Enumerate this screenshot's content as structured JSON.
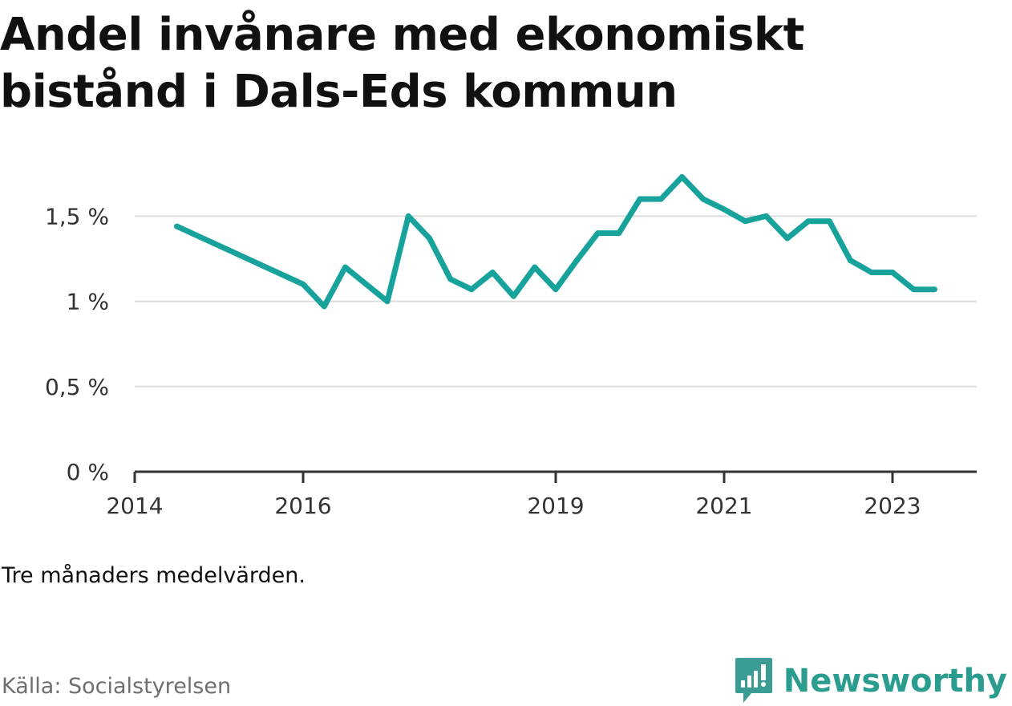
{
  "title": "Andel invånare med ekonomiskt bistånd i Dals-Eds kommun",
  "note": "Tre månaders medelvärden.",
  "source": "Källa: Socialstyrelsen",
  "brand": {
    "name": "Newsworthy",
    "icon": "newsworthy-logo-icon",
    "color": "#3a9c93"
  },
  "colors": {
    "line": "#17a39c",
    "grid": "#dddddd",
    "axis": "#333333"
  },
  "chart_data": {
    "type": "line",
    "title": "Andel invånare med ekonomiskt bistånd i Dals-Eds kommun",
    "xlabel": "",
    "ylabel": "",
    "grid": true,
    "legend": "none",
    "xlim": [
      "2014-01",
      "2024-01"
    ],
    "ylim": [
      0,
      1.85
    ],
    "y_ticks": [
      {
        "value": 0,
        "label": "0 %"
      },
      {
        "value": 0.5,
        "label": "0,5 %"
      },
      {
        "value": 1,
        "label": "1 %"
      },
      {
        "value": 1.5,
        "label": "1,5 %"
      }
    ],
    "x_ticks": [
      {
        "value": "2014-01",
        "label": "2014"
      },
      {
        "value": "2016-01",
        "label": "2016"
      },
      {
        "value": "2019-01",
        "label": "2019"
      },
      {
        "value": "2021-01",
        "label": "2021"
      },
      {
        "value": "2023-01",
        "label": "2023"
      }
    ],
    "series": [
      {
        "color": "#17a39c",
        "points": [
          {
            "x": "2014-07",
            "y": 1.44
          },
          {
            "x": "2016-01",
            "y": 1.1
          },
          {
            "x": "2016-04",
            "y": 0.97
          },
          {
            "x": "2016-07",
            "y": 1.2
          },
          {
            "x": "2017-01",
            "y": 1.0
          },
          {
            "x": "2017-04",
            "y": 1.5
          },
          {
            "x": "2017-07",
            "y": 1.37
          },
          {
            "x": "2017-10",
            "y": 1.13
          },
          {
            "x": "2018-01",
            "y": 1.07
          },
          {
            "x": "2018-04",
            "y": 1.17
          },
          {
            "x": "2018-07",
            "y": 1.03
          },
          {
            "x": "2018-10",
            "y": 1.2
          },
          {
            "x": "2019-01",
            "y": 1.07
          },
          {
            "x": "2019-04",
            "y": 1.24
          },
          {
            "x": "2019-07",
            "y": 1.4
          },
          {
            "x": "2019-10",
            "y": 1.4
          },
          {
            "x": "2020-01",
            "y": 1.6
          },
          {
            "x": "2020-04",
            "y": 1.6
          },
          {
            "x": "2020-07",
            "y": 1.73
          },
          {
            "x": "2020-10",
            "y": 1.6
          },
          {
            "x": "2021-01",
            "y": 1.54
          },
          {
            "x": "2021-04",
            "y": 1.47
          },
          {
            "x": "2021-07",
            "y": 1.5
          },
          {
            "x": "2021-10",
            "y": 1.37
          },
          {
            "x": "2022-01",
            "y": 1.47
          },
          {
            "x": "2022-04",
            "y": 1.47
          },
          {
            "x": "2022-07",
            "y": 1.24
          },
          {
            "x": "2022-10",
            "y": 1.17
          },
          {
            "x": "2023-01",
            "y": 1.17
          },
          {
            "x": "2023-04",
            "y": 1.07
          },
          {
            "x": "2023-07",
            "y": 1.07
          }
        ]
      }
    ]
  }
}
